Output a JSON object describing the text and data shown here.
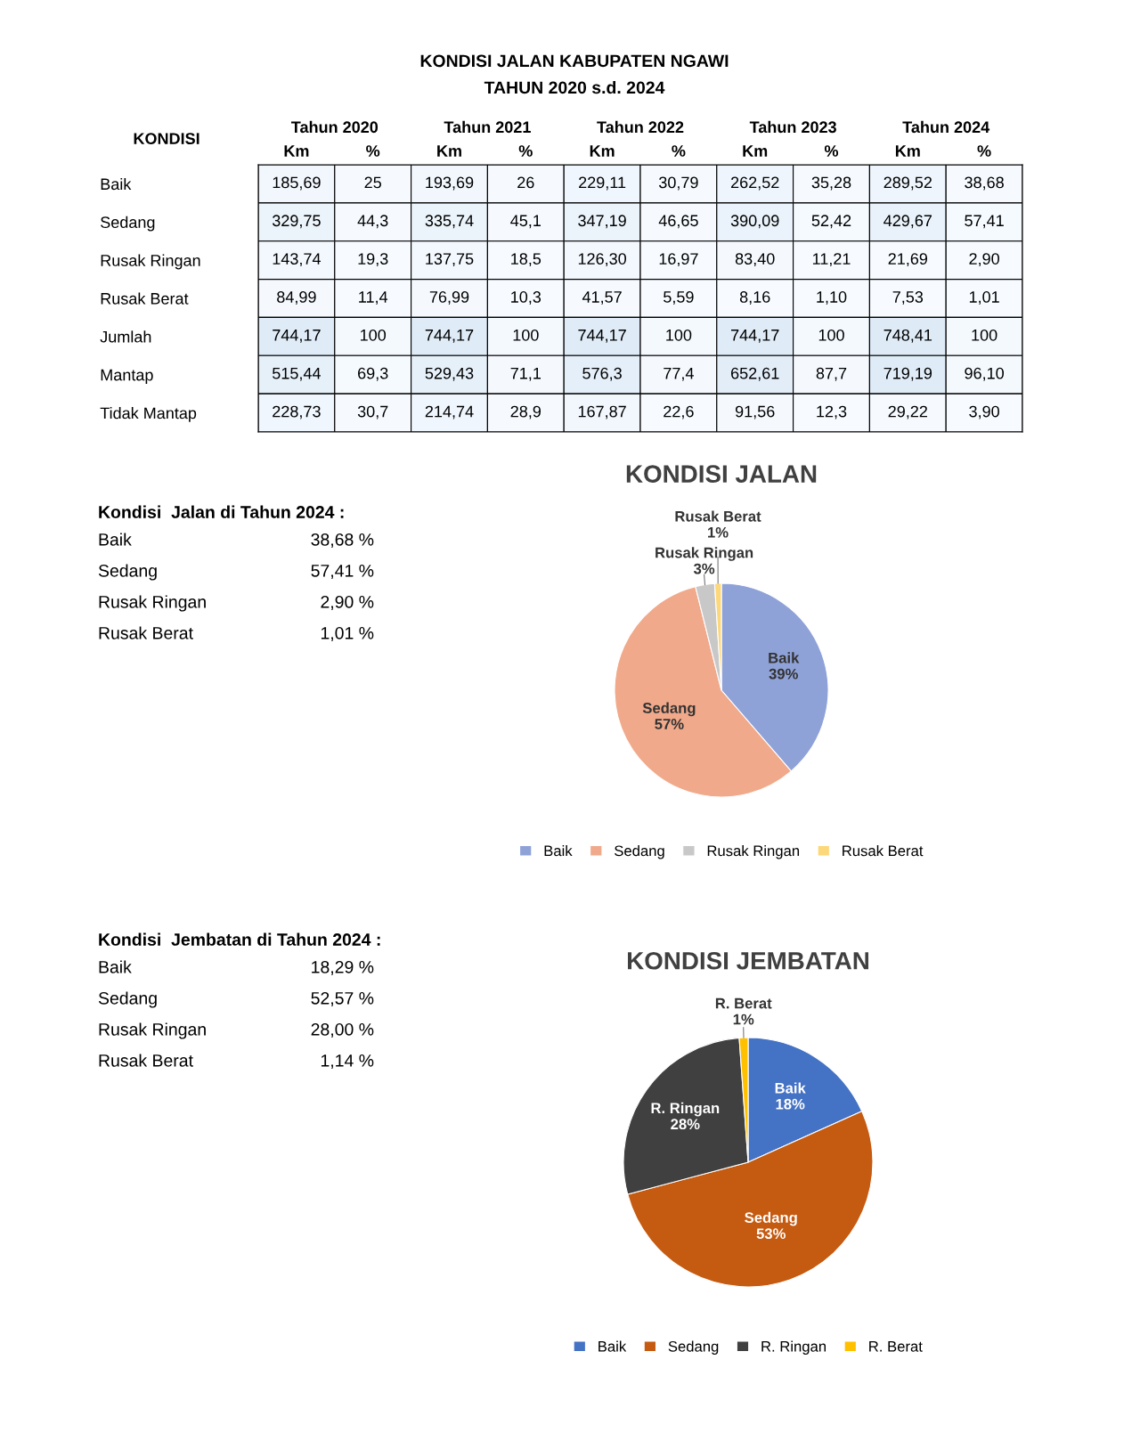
{
  "chart_data": [
    {
      "type": "heatmap",
      "title": "KONDISI JALAN KABUPATEN NGAWI",
      "subtitle": "TAHUN 2020 s.d. 2024",
      "annotations": [
        "KONDISI",
        "Tahun 2020",
        "Tahun 2021",
        "Tahun 2022",
        "Tahun 2023",
        "Tahun 2024"
      ],
      "categories": [
        "Km",
        "%",
        "Km",
        "%",
        "Km",
        "%",
        "Km",
        "%",
        "Km",
        "%"
      ],
      "y_categories": [
        "Baik",
        "Sedang",
        "Rusak Ringan",
        "Rusak Berat",
        "Jumlah",
        "Mantap",
        "Tidak Mantap"
      ],
      "cells": [
        [
          185.69,
          25,
          193.69,
          26,
          229.11,
          30.79,
          262.52,
          35.28,
          289.52,
          38.68
        ],
        [
          329.75,
          44.3,
          335.74,
          45.1,
          347.19,
          46.65,
          390.09,
          52.42,
          429.67,
          57.41
        ],
        [
          143.74,
          19.3,
          137.75,
          18.5,
          126.3,
          16.97,
          83.4,
          11.21,
          21.69,
          2.9
        ],
        [
          84.99,
          11.4,
          76.99,
          10.3,
          41.57,
          5.59,
          8.16,
          1.1,
          7.53,
          1.01
        ],
        [
          744.17,
          100,
          744.17,
          100,
          744.17,
          100,
          744.17,
          100,
          748.41,
          100
        ],
        [
          515.44,
          69.3,
          529.43,
          71.1,
          576.3,
          77.4,
          652.61,
          87.7,
          719.19,
          96.1
        ],
        [
          228.73,
          30.7,
          214.74,
          28.9,
          167.87,
          22.6,
          91.56,
          12.3,
          29.22,
          3.9
        ]
      ],
      "cell_labels": [
        [
          "185,69",
          "25",
          "193,69",
          "26",
          "229,11",
          "30,79",
          "262,52",
          "35,28",
          "289,52",
          "38,68"
        ],
        [
          "329,75",
          "44,3",
          "335,74",
          "45,1",
          "347,19",
          "46,65",
          "390,09",
          "52,42",
          "429,67",
          "57,41"
        ],
        [
          "143,74",
          "19,3",
          "137,75",
          "18,5",
          "126,30",
          "16,97",
          "83,40",
          "11,21",
          "21,69",
          "2,90"
        ],
        [
          "84,99",
          "11,4",
          "76,99",
          "10,3",
          "41,57",
          "5,59",
          "8,16",
          "1,10",
          "7,53",
          "1,01"
        ],
        [
          "744,17",
          "100",
          "744,17",
          "100",
          "744,17",
          "100",
          "744,17",
          "100",
          "748,41",
          "100"
        ],
        [
          "515,44",
          "69,3",
          "529,43",
          "71,1",
          "576,3",
          "77,4",
          "652,61",
          "87,7",
          "719,19",
          "96,10"
        ],
        [
          "228,73",
          "30,7",
          "214,74",
          "28,9",
          "167,87",
          "22,6",
          "91,56",
          "12,3",
          "29,22",
          "3,90"
        ]
      ]
    },
    {
      "type": "other",
      "title": "Kondisi  Jalan di Tahun 2024 :",
      "annotations": [
        "Baik",
        "38,68 %",
        "Sedang",
        "57,41 %",
        "Rusak Ringan",
        "2,90 %",
        "Rusak Berat",
        "1,01 %"
      ]
    },
    {
      "type": "pie",
      "title": "KONDISI JALAN",
      "categories": [
        "Baik",
        "Sedang",
        "Rusak Ringan",
        "Rusak Berat"
      ],
      "values": [
        38.68,
        57.41,
        2.9,
        1.01
      ],
      "colors": [
        "#8fa2d8",
        "#f0a98a",
        "#c8c8c8",
        "#fdd87a"
      ],
      "value_labels": [
        "39%",
        "57%",
        "3%",
        "1%"
      ],
      "legend": "bottom"
    },
    {
      "type": "other",
      "title": "Kondisi  Jembatan di Tahun 2024 :",
      "annotations": [
        "Baik",
        "18,29 %",
        "Sedang",
        "52,57 %",
        "Rusak Ringan",
        "28,00 %",
        "Rusak Berat",
        "1,14 %"
      ]
    },
    {
      "type": "pie",
      "title": "KONDISI JEMBATAN",
      "categories": [
        "Baik",
        "Sedang",
        "R. Ringan",
        "R. Berat"
      ],
      "values": [
        18.29,
        52.57,
        28.0,
        1.14
      ],
      "colors": [
        "#4472c4",
        "#c55a11",
        "#404040",
        "#ffc000"
      ],
      "value_labels": [
        "18%",
        "53%",
        "28%",
        "1%"
      ],
      "legend": "bottom"
    }
  ]
}
